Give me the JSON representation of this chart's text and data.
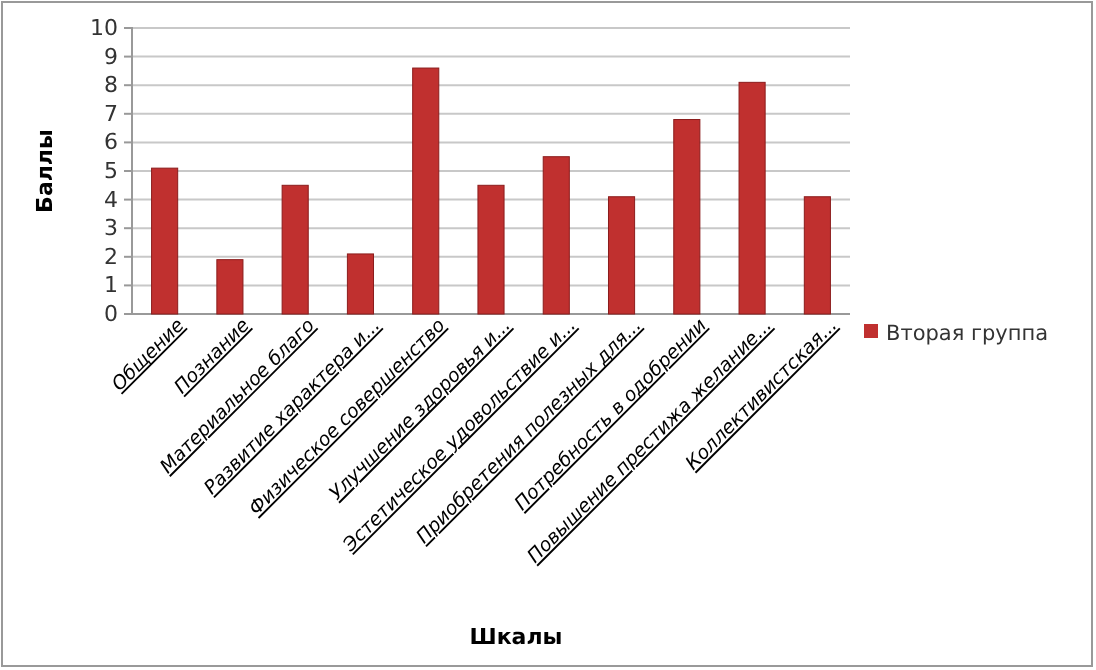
{
  "chart_data": {
    "type": "bar",
    "xlabel": "Шкалы",
    "ylabel": "Баллы",
    "categories": [
      "Общение",
      "Познание",
      "Материальное благо",
      "Развитие характера и...",
      "Физическое совершенство",
      "Улучшение здоровья и...",
      "Эстетическое удовольствие и...",
      "Приобретения полезных для...",
      "Потребность в одобрении",
      "Повышение престижа желание...",
      "Коллективистская..."
    ],
    "series": [
      {
        "name": "Вторая группа",
        "color": "#c0302f",
        "values": [
          5.1,
          1.9,
          4.5,
          2.1,
          8.6,
          4.5,
          5.5,
          4.1,
          6.8,
          8.1,
          4.1
        ]
      }
    ],
    "ylim": [
      0,
      10
    ],
    "yticks": [
      0,
      1,
      2,
      3,
      4,
      5,
      6,
      7,
      8,
      9,
      10
    ],
    "grid": "y",
    "legend": "right"
  }
}
